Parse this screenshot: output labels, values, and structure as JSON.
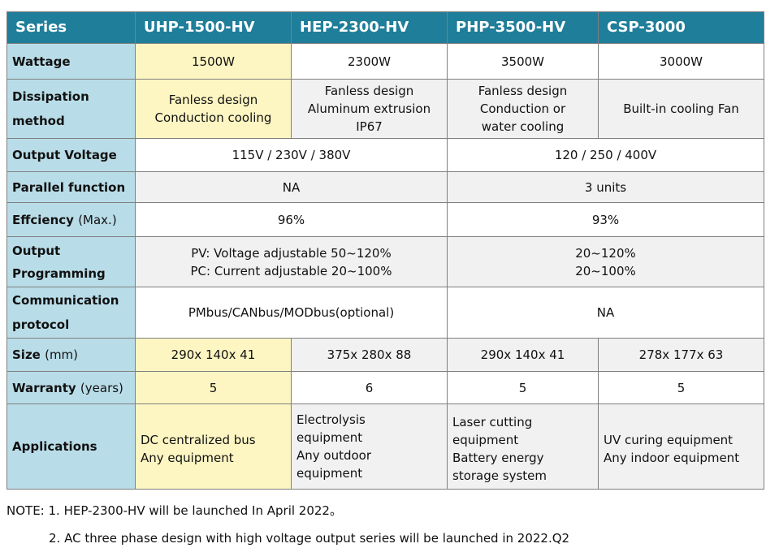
{
  "header": {
    "label": "Series",
    "columns": [
      "UHP-1500-HV",
      "HEP-2300-HV",
      "PHP-3500-HV",
      "CSP-3000"
    ]
  },
  "rows": {
    "wattage": {
      "label": "Wattage",
      "values": [
        "1500W",
        "2300W",
        "3500W",
        "3000W"
      ]
    },
    "dissipation": {
      "label_line1": "Dissipation",
      "label_line2": "method",
      "values": [
        [
          "Fanless design",
          "Conduction cooling"
        ],
        [
          "Fanless design",
          "Aluminum extrusion",
          "IP67"
        ],
        [
          "Fanless design",
          "Conduction or",
          "water cooling"
        ],
        [
          "Built-in cooling Fan"
        ]
      ]
    },
    "output_voltage": {
      "label": "Output Voltage",
      "left": "115V / 230V / 380V",
      "right": "120 / 250 / 400V"
    },
    "parallel": {
      "label": "Parallel function",
      "left": "NA",
      "right": "3 units"
    },
    "efficiency": {
      "label": "Effciency",
      "unit": "(Max.)",
      "left": "96%",
      "right": "93%"
    },
    "programming": {
      "label_line1": "Output",
      "label_line2": "Programming",
      "left": [
        "PV: Voltage adjustable 50~120%",
        "PC: Current adjustable 20~100%"
      ],
      "right": [
        "20~120%",
        "20~100%"
      ]
    },
    "communication": {
      "label_line1": "Communication",
      "label_line2": "protocol",
      "left": "PMbus/CANbus/MODbus(optional)",
      "right": "NA"
    },
    "size": {
      "label": "Size",
      "unit": "(mm)",
      "values": [
        "290x 140x 41",
        "375x 280x 88",
        "290x 140x 41",
        "278x 177x 63"
      ]
    },
    "warranty": {
      "label": "Warranty",
      "unit": "(years)",
      "values": [
        "5",
        "6",
        "5",
        "5"
      ]
    },
    "applications": {
      "label": "Applications",
      "values": [
        [
          "DC centralized bus",
          "Any equipment"
        ],
        [
          "Electrolysis",
          "equipment",
          "Any outdoor",
          "equipment"
        ],
        [
          "Laser cutting",
          "equipment",
          "Battery energy",
          "storage system"
        ],
        [
          "UV curing equipment",
          "Any indoor equipment"
        ]
      ]
    }
  },
  "notes": [
    "NOTE: 1. HEP-2300-HV will be launched In April 2022。",
    "2. AC three phase design with high voltage output series will be launched in 2022.Q2"
  ],
  "colors": {
    "header_bg": "#1f7e9a",
    "label_bg": "#b9dde8",
    "highlight_bg": "#fdf6c2",
    "cell_bg": "#f1f1f1"
  }
}
